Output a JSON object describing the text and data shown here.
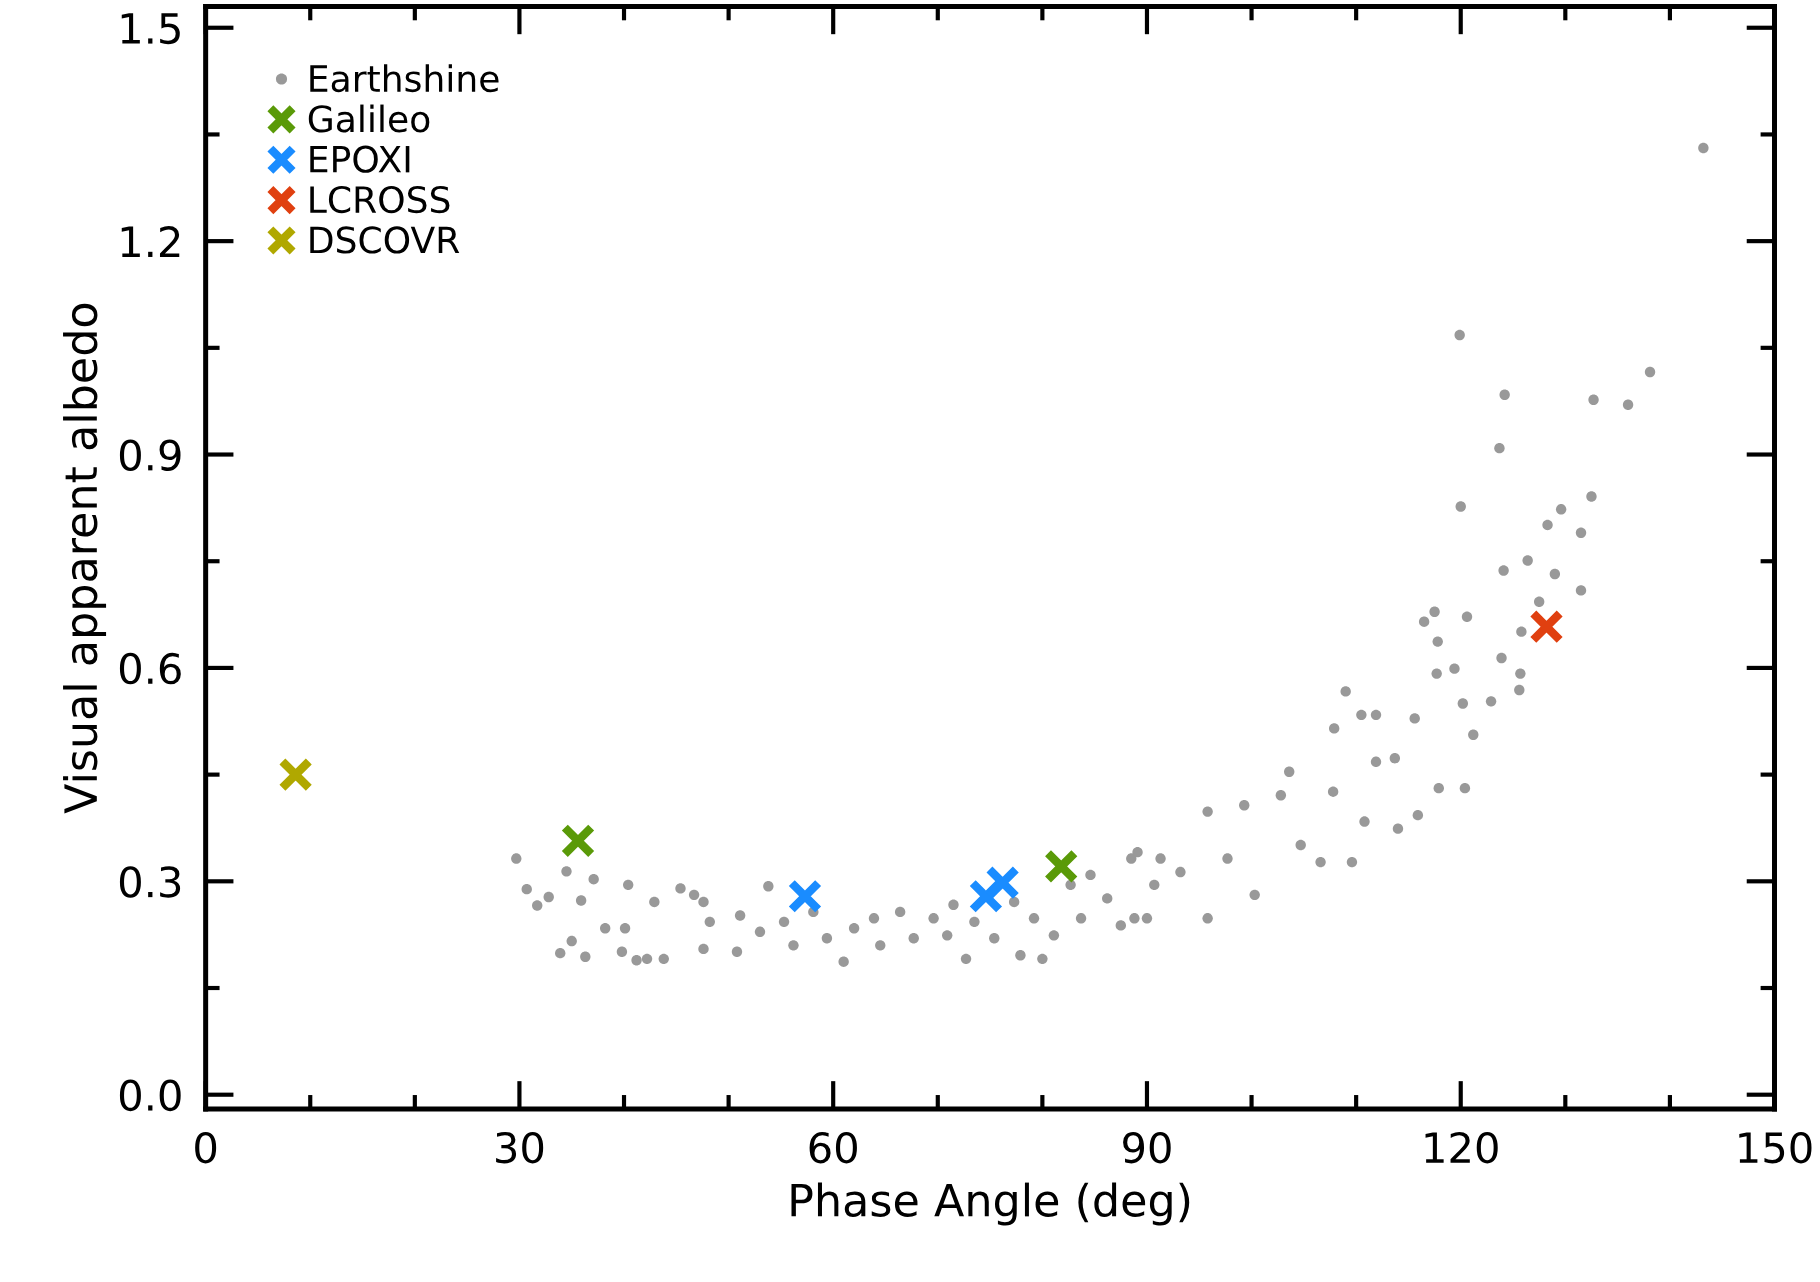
{
  "chart_data": {
    "type": "scatter",
    "xlabel": "Phase Angle (deg)",
    "ylabel": "Visual apparent albedo",
    "xlim": [
      0,
      150
    ],
    "xticks": [
      0,
      30,
      60,
      90,
      120,
      150
    ],
    "ylim": [
      -0.02,
      1.53
    ],
    "yticks": [
      {
        "value": 0,
        "label": "0.0"
      },
      0.3,
      0.6,
      0.9,
      1.2,
      1.5
    ],
    "grid": false,
    "legend": "top left",
    "series": [
      {
        "name": "Earthshine",
        "color": "#999999",
        "marker": "circle",
        "x": [
          29.7,
          30.7,
          31.7,
          32.8,
          34.5,
          33.9,
          35.0,
          36.3,
          37.1,
          35.9,
          38.2,
          40.4,
          40.1,
          39.8,
          41.2,
          42.2,
          43.8,
          42.9,
          45.4,
          46.7,
          47.6,
          48.2,
          47.6,
          50.8,
          51.1,
          53.8,
          53.0,
          55.3,
          56.2,
          58.1,
          59.4,
          61.0,
          62.0,
          63.9,
          64.5,
          66.4,
          67.7,
          69.6,
          70.9,
          71.5,
          72.7,
          73.5,
          75.4,
          77.3,
          77.9,
          79.2,
          80.0,
          81.1,
          82.7,
          84.6,
          83.7,
          86.2,
          87.5,
          88.5,
          89.1,
          90.0,
          90.7,
          88.8,
          91.3,
          93.2,
          95.8,
          95.8,
          97.7,
          99.3,
          100.3,
          102.8,
          103.6,
          104.7,
          106.6,
          107.8,
          107.9,
          109.0,
          109.6,
          110.5,
          111.9,
          110.8,
          111.9,
          114.0,
          113.7,
          115.6,
          115.9,
          116.5,
          117.5,
          117.7,
          117.8,
          117.9,
          119.4,
          120.2,
          120.4,
          120.6,
          121.2,
          122.9,
          123.9,
          125.6,
          125.7,
          125.8,
          124.1,
          126.4,
          127.5,
          128.3,
          129.6,
          131.5,
          131.5,
          120.0,
          119.9,
          124.2,
          123.7,
          132.7,
          136.0,
          138.1,
          132.5,
          129.0,
          143.2
        ],
        "values": [
          0.332,
          0.289,
          0.266,
          0.278,
          0.314,
          0.199,
          0.216,
          0.194,
          0.303,
          0.273,
          0.234,
          0.295,
          0.234,
          0.201,
          0.189,
          0.191,
          0.191,
          0.271,
          0.29,
          0.281,
          0.271,
          0.243,
          0.205,
          0.201,
          0.252,
          0.293,
          0.229,
          0.243,
          0.21,
          0.257,
          0.22,
          0.187,
          0.234,
          0.248,
          0.21,
          0.257,
          0.22,
          0.248,
          0.224,
          0.267,
          0.191,
          0.243,
          0.22,
          0.271,
          0.196,
          0.248,
          0.191,
          0.224,
          0.295,
          0.309,
          0.248,
          0.276,
          0.238,
          0.332,
          0.341,
          0.248,
          0.295,
          0.248,
          0.332,
          0.313,
          0.248,
          0.398,
          0.332,
          0.407,
          0.281,
          0.421,
          0.454,
          0.351,
          0.327,
          0.426,
          0.515,
          0.567,
          0.327,
          0.534,
          0.534,
          0.384,
          0.468,
          0.374,
          0.473,
          0.529,
          0.393,
          0.665,
          0.679,
          0.592,
          0.637,
          0.431,
          0.599,
          0.55,
          0.431,
          0.672,
          0.506,
          0.553,
          0.614,
          0.569,
          0.592,
          0.651,
          0.737,
          0.751,
          0.693,
          0.801,
          0.823,
          0.79,
          0.709,
          0.827,
          1.068,
          0.984,
          0.909,
          0.977,
          0.97,
          1.016,
          0.841,
          0.732,
          1.331
        ]
      },
      {
        "name": "Galileo",
        "color": "#5a9a08",
        "marker": "cross",
        "x": [
          35.6,
          81.8
        ],
        "values": [
          0.357,
          0.321
        ]
      },
      {
        "name": "EPOXI",
        "color": "#1a8cff",
        "marker": "cross",
        "x": [
          57.3,
          74.6,
          76.2
        ],
        "values": [
          0.279,
          0.279,
          0.298
        ]
      },
      {
        "name": "LCROSS",
        "color": "#e04010",
        "marker": "cross",
        "x": [
          128.2
        ],
        "values": [
          0.658
        ]
      },
      {
        "name": "DSCOVR",
        "color": "#b0a800",
        "marker": "cross",
        "x": [
          8.6
        ],
        "values": [
          0.45
        ]
      }
    ]
  }
}
